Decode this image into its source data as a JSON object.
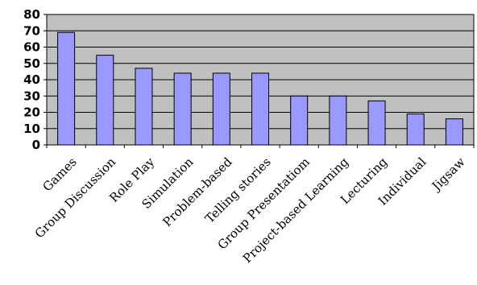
{
  "chart_data": {
    "type": "bar",
    "categories": [
      "Games",
      "Group Discussion",
      "Role Play",
      "Simulation",
      "Problem-based",
      "Telling stories",
      "Group Presentatiom",
      "Project-based Learning",
      "Lecturing",
      "Individual",
      "Jigsaw"
    ],
    "values": [
      69,
      55,
      47,
      44,
      44,
      44,
      30,
      30,
      27,
      19,
      16
    ],
    "title": "",
    "xlabel": "",
    "ylabel": "",
    "ylim": [
      0,
      80
    ],
    "yticks": [
      "0",
      "10",
      "20",
      "30",
      "40",
      "50",
      "60",
      "70",
      "80"
    ],
    "grid": true,
    "legend": "none",
    "colors": {
      "plot_background": "#c0c0c0",
      "bar_fill": "#9999ff",
      "bar_stroke": "#000000",
      "gridline": "#000000"
    }
  }
}
